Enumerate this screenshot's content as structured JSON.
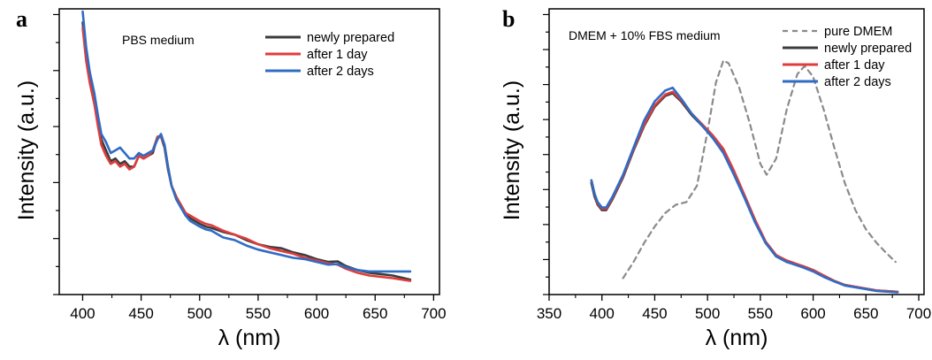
{
  "chart_data": [
    {
      "id": "a",
      "type": "line",
      "panel_label": "a",
      "annotation": "PBS medium",
      "xlabel": "λ (nm)",
      "ylabel": "Intensity (a.u.)",
      "xlim": [
        380,
        705
      ],
      "ylim": [
        0,
        1.05
      ],
      "xticks": [
        400,
        450,
        500,
        550,
        600,
        650,
        700
      ],
      "y_tick_labels_shown": false,
      "legend_position": "top-right",
      "series": [
        {
          "name": "newly prepared",
          "color": "#3c3c3c",
          "points": [
            [
              400,
              1.0
            ],
            [
              403,
              0.88
            ],
            [
              406,
              0.8
            ],
            [
              410,
              0.72
            ],
            [
              413,
              0.63
            ],
            [
              416,
              0.57
            ],
            [
              420,
              0.53
            ],
            [
              424,
              0.49
            ],
            [
              428,
              0.5
            ],
            [
              432,
              0.48
            ],
            [
              436,
              0.49
            ],
            [
              440,
              0.47
            ],
            [
              444,
              0.47
            ],
            [
              448,
              0.51
            ],
            [
              452,
              0.5
            ],
            [
              456,
              0.51
            ],
            [
              460,
              0.52
            ],
            [
              464,
              0.58
            ],
            [
              467,
              0.58
            ],
            [
              470,
              0.54
            ],
            [
              473,
              0.46
            ],
            [
              476,
              0.4
            ],
            [
              480,
              0.36
            ],
            [
              484,
              0.32
            ],
            [
              488,
              0.3
            ],
            [
              492,
              0.28
            ],
            [
              496,
              0.27
            ],
            [
              500,
              0.26
            ],
            [
              505,
              0.25
            ],
            [
              510,
              0.245
            ],
            [
              520,
              0.23
            ],
            [
              530,
              0.22
            ],
            [
              540,
              0.2
            ],
            [
              550,
              0.185
            ],
            [
              560,
              0.175
            ],
            [
              570,
              0.17
            ],
            [
              580,
              0.155
            ],
            [
              590,
              0.145
            ],
            [
              600,
              0.13
            ],
            [
              610,
              0.12
            ],
            [
              618,
              0.122
            ],
            [
              625,
              0.105
            ],
            [
              635,
              0.09
            ],
            [
              645,
              0.08
            ],
            [
              655,
              0.075
            ],
            [
              665,
              0.07
            ],
            [
              680,
              0.055
            ]
          ]
        },
        {
          "name": "after 1 day",
          "color": "#e03c3c",
          "points": [
            [
              400,
              0.98
            ],
            [
              403,
              0.86
            ],
            [
              406,
              0.78
            ],
            [
              410,
              0.7
            ],
            [
              413,
              0.62
            ],
            [
              416,
              0.55
            ],
            [
              420,
              0.51
            ],
            [
              424,
              0.48
            ],
            [
              428,
              0.49
            ],
            [
              432,
              0.47
            ],
            [
              436,
              0.48
            ],
            [
              440,
              0.46
            ],
            [
              444,
              0.47
            ],
            [
              448,
              0.51
            ],
            [
              452,
              0.5
            ],
            [
              456,
              0.51
            ],
            [
              460,
              0.53
            ],
            [
              464,
              0.58
            ],
            [
              467,
              0.58
            ],
            [
              470,
              0.55
            ],
            [
              473,
              0.47
            ],
            [
              476,
              0.4
            ],
            [
              480,
              0.36
            ],
            [
              484,
              0.33
            ],
            [
              488,
              0.3
            ],
            [
              492,
              0.29
            ],
            [
              496,
              0.28
            ],
            [
              500,
              0.27
            ],
            [
              505,
              0.26
            ],
            [
              510,
              0.255
            ],
            [
              520,
              0.235
            ],
            [
              530,
              0.22
            ],
            [
              540,
              0.205
            ],
            [
              550,
              0.185
            ],
            [
              560,
              0.17
            ],
            [
              570,
              0.16
            ],
            [
              580,
              0.15
            ],
            [
              590,
              0.135
            ],
            [
              600,
              0.125
            ],
            [
              610,
              0.115
            ],
            [
              618,
              0.11
            ],
            [
              625,
              0.095
            ],
            [
              635,
              0.08
            ],
            [
              645,
              0.07
            ],
            [
              655,
              0.065
            ],
            [
              665,
              0.06
            ],
            [
              680,
              0.05
            ]
          ]
        },
        {
          "name": "after 2 days",
          "color": "#2f6cc4",
          "points": [
            [
              400,
              1.04
            ],
            [
              403,
              0.91
            ],
            [
              406,
              0.82
            ],
            [
              410,
              0.74
            ],
            [
              413,
              0.66
            ],
            [
              416,
              0.59
            ],
            [
              420,
              0.56
            ],
            [
              424,
              0.52
            ],
            [
              428,
              0.53
            ],
            [
              432,
              0.54
            ],
            [
              436,
              0.52
            ],
            [
              440,
              0.5
            ],
            [
              444,
              0.5
            ],
            [
              448,
              0.52
            ],
            [
              452,
              0.51
            ],
            [
              456,
              0.52
            ],
            [
              460,
              0.53
            ],
            [
              464,
              0.57
            ],
            [
              467,
              0.59
            ],
            [
              470,
              0.55
            ],
            [
              473,
              0.47
            ],
            [
              476,
              0.4
            ],
            [
              480,
              0.35
            ],
            [
              484,
              0.32
            ],
            [
              488,
              0.29
            ],
            [
              492,
              0.27
            ],
            [
              496,
              0.26
            ],
            [
              500,
              0.25
            ],
            [
              505,
              0.24
            ],
            [
              510,
              0.235
            ],
            [
              520,
              0.21
            ],
            [
              530,
              0.2
            ],
            [
              540,
              0.18
            ],
            [
              550,
              0.165
            ],
            [
              560,
              0.155
            ],
            [
              570,
              0.145
            ],
            [
              580,
              0.135
            ],
            [
              590,
              0.13
            ],
            [
              600,
              0.12
            ],
            [
              610,
              0.11
            ],
            [
              618,
              0.112
            ],
            [
              625,
              0.1
            ],
            [
              635,
              0.09
            ],
            [
              645,
              0.085
            ],
            [
              655,
              0.085
            ],
            [
              665,
              0.085
            ],
            [
              680,
              0.085
            ]
          ]
        }
      ]
    },
    {
      "id": "b",
      "type": "line",
      "panel_label": "b",
      "annotation": "DMEM + 10% FBS medium",
      "xlabel": "λ (nm)",
      "ylabel": "Intensity (a.u.)",
      "xlim": [
        350,
        705
      ],
      "ylim": [
        0,
        1.05
      ],
      "xticks": [
        350,
        400,
        450,
        500,
        550,
        600,
        650,
        700
      ],
      "y_tick_labels_shown": false,
      "legend_position": "top-right",
      "series": [
        {
          "name": "pure DMEM",
          "color": "#8a8a8a",
          "dashed": true,
          "points": [
            [
              420,
              0.06
            ],
            [
              430,
              0.12
            ],
            [
              440,
              0.19
            ],
            [
              450,
              0.25
            ],
            [
              460,
              0.3
            ],
            [
              470,
              0.33
            ],
            [
              480,
              0.34
            ],
            [
              490,
              0.4
            ],
            [
              500,
              0.6
            ],
            [
              508,
              0.78
            ],
            [
              515,
              0.86
            ],
            [
              520,
              0.85
            ],
            [
              530,
              0.76
            ],
            [
              540,
              0.63
            ],
            [
              550,
              0.48
            ],
            [
              556,
              0.44
            ],
            [
              565,
              0.5
            ],
            [
              575,
              0.68
            ],
            [
              585,
              0.81
            ],
            [
              592,
              0.84
            ],
            [
              600,
              0.8
            ],
            [
              610,
              0.68
            ],
            [
              620,
              0.54
            ],
            [
              630,
              0.41
            ],
            [
              640,
              0.31
            ],
            [
              650,
              0.24
            ],
            [
              660,
              0.19
            ],
            [
              670,
              0.15
            ],
            [
              678,
              0.12
            ]
          ]
        },
        {
          "name": "newly prepared",
          "color": "#3c3c3c",
          "points": [
            [
              390,
              0.41
            ],
            [
              393,
              0.36
            ],
            [
              396,
              0.33
            ],
            [
              400,
              0.31
            ],
            [
              404,
              0.31
            ],
            [
              410,
              0.35
            ],
            [
              420,
              0.43
            ],
            [
              430,
              0.53
            ],
            [
              440,
              0.62
            ],
            [
              450,
              0.69
            ],
            [
              460,
              0.73
            ],
            [
              467,
              0.74
            ],
            [
              475,
              0.71
            ],
            [
              485,
              0.66
            ],
            [
              495,
              0.62
            ],
            [
              505,
              0.58
            ],
            [
              515,
              0.53
            ],
            [
              525,
              0.45
            ],
            [
              535,
              0.36
            ],
            [
              545,
              0.27
            ],
            [
              555,
              0.19
            ],
            [
              565,
              0.14
            ],
            [
              575,
              0.12
            ],
            [
              590,
              0.105
            ],
            [
              600,
              0.09
            ],
            [
              610,
              0.07
            ],
            [
              620,
              0.05
            ],
            [
              630,
              0.035
            ],
            [
              645,
              0.025
            ],
            [
              660,
              0.015
            ],
            [
              680,
              0.01
            ]
          ]
        },
        {
          "name": "after 1 day",
          "color": "#e03c3c",
          "points": [
            [
              390,
              0.42
            ],
            [
              393,
              0.37
            ],
            [
              396,
              0.335
            ],
            [
              400,
              0.315
            ],
            [
              404,
              0.315
            ],
            [
              410,
              0.355
            ],
            [
              420,
              0.435
            ],
            [
              430,
              0.535
            ],
            [
              440,
              0.625
            ],
            [
              450,
              0.695
            ],
            [
              460,
              0.735
            ],
            [
              467,
              0.745
            ],
            [
              475,
              0.715
            ],
            [
              485,
              0.665
            ],
            [
              495,
              0.625
            ],
            [
              505,
              0.585
            ],
            [
              515,
              0.535
            ],
            [
              525,
              0.455
            ],
            [
              535,
              0.365
            ],
            [
              545,
              0.275
            ],
            [
              555,
              0.195
            ],
            [
              565,
              0.145
            ],
            [
              575,
              0.125
            ],
            [
              590,
              0.105
            ],
            [
              600,
              0.09
            ],
            [
              610,
              0.07
            ],
            [
              620,
              0.05
            ],
            [
              630,
              0.035
            ],
            [
              645,
              0.025
            ],
            [
              660,
              0.015
            ],
            [
              680,
              0.01
            ]
          ]
        },
        {
          "name": "after 2 days",
          "color": "#2f6cc4",
          "points": [
            [
              390,
              0.42
            ],
            [
              393,
              0.37
            ],
            [
              396,
              0.34
            ],
            [
              400,
              0.32
            ],
            [
              404,
              0.32
            ],
            [
              410,
              0.36
            ],
            [
              420,
              0.44
            ],
            [
              430,
              0.54
            ],
            [
              440,
              0.64
            ],
            [
              450,
              0.71
            ],
            [
              460,
              0.75
            ],
            [
              467,
              0.76
            ],
            [
              475,
              0.72
            ],
            [
              485,
              0.665
            ],
            [
              495,
              0.62
            ],
            [
              505,
              0.575
            ],
            [
              515,
              0.52
            ],
            [
              525,
              0.44
            ],
            [
              535,
              0.355
            ],
            [
              545,
              0.265
            ],
            [
              555,
              0.19
            ],
            [
              565,
              0.14
            ],
            [
              575,
              0.12
            ],
            [
              590,
              0.1
            ],
            [
              600,
              0.085
            ],
            [
              610,
              0.065
            ],
            [
              620,
              0.048
            ],
            [
              630,
              0.033
            ],
            [
              645,
              0.023
            ],
            [
              660,
              0.013
            ],
            [
              680,
              0.008
            ]
          ]
        }
      ]
    }
  ]
}
